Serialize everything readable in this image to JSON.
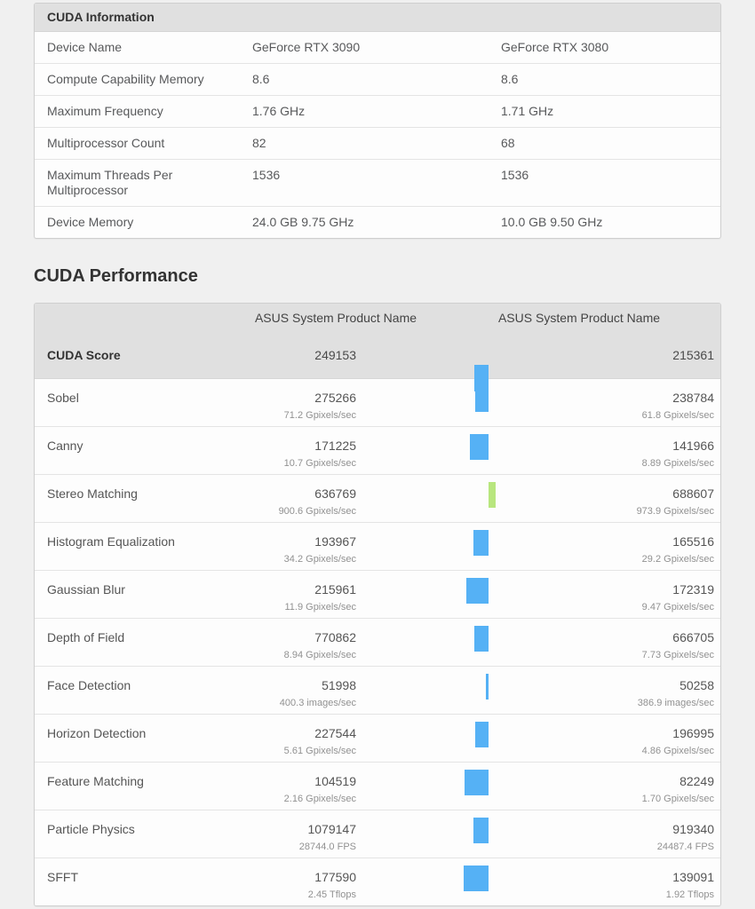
{
  "colors": {
    "bar_blue": "#55b1f5",
    "bar_green": "#b8e67e",
    "header_bg": "#e0e0e0"
  },
  "info": {
    "title": "CUDA Information",
    "rows": [
      {
        "label": "Device Name",
        "v1": "GeForce RTX 3090",
        "v2": "GeForce RTX 3080"
      },
      {
        "label": "Compute Capability Memory",
        "v1": "8.6",
        "v2": "8.6"
      },
      {
        "label": "Maximum Frequency",
        "v1": "1.76 GHz",
        "v2": "1.71 GHz"
      },
      {
        "label": "Multiprocessor Count",
        "v1": "82",
        "v2": "68"
      },
      {
        "label": "Maximum Threads Per Multiprocessor",
        "v1": "1536",
        "v2": "1536"
      },
      {
        "label": "Device Memory",
        "v1": "24.0 GB 9.75 GHz",
        "v2": "10.0 GB 9.50 GHz"
      }
    ]
  },
  "perf": {
    "heading": "CUDA Performance",
    "device1": "ASUS System Product Name",
    "device2": "ASUS System Product Name",
    "score_row": {
      "label": "CUDA Score",
      "s1": 249153,
      "s2": 215361
    },
    "rows": [
      {
        "label": "Sobel",
        "s1": 275266,
        "sub1": "71.2 Gpixels/sec",
        "s2": 238784,
        "sub2": "61.8 Gpixels/sec"
      },
      {
        "label": "Canny",
        "s1": 171225,
        "sub1": "10.7 Gpixels/sec",
        "s2": 141966,
        "sub2": "8.89 Gpixels/sec"
      },
      {
        "label": "Stereo Matching",
        "s1": 636769,
        "sub1": "900.6 Gpixels/sec",
        "s2": 688607,
        "sub2": "973.9 Gpixels/sec"
      },
      {
        "label": "Histogram Equalization",
        "s1": 193967,
        "sub1": "34.2 Gpixels/sec",
        "s2": 165516,
        "sub2": "29.2 Gpixels/sec"
      },
      {
        "label": "Gaussian Blur",
        "s1": 215961,
        "sub1": "11.9 Gpixels/sec",
        "s2": 172319,
        "sub2": "9.47 Gpixels/sec"
      },
      {
        "label": "Depth of Field",
        "s1": 770862,
        "sub1": "8.94 Gpixels/sec",
        "s2": 666705,
        "sub2": "7.73 Gpixels/sec"
      },
      {
        "label": "Face Detection",
        "s1": 51998,
        "sub1": "400.3 images/sec",
        "s2": 50258,
        "sub2": "386.9 images/sec"
      },
      {
        "label": "Horizon Detection",
        "s1": 227544,
        "sub1": "5.61 Gpixels/sec",
        "s2": 196995,
        "sub2": "4.86 Gpixels/sec"
      },
      {
        "label": "Feature Matching",
        "s1": 104519,
        "sub1": "2.16 Gpixels/sec",
        "s2": 82249,
        "sub2": "1.70 Gpixels/sec"
      },
      {
        "label": "Particle Physics",
        "s1": 1079147,
        "sub1": "28744.0 FPS",
        "s2": 919340,
        "sub2": "24487.4 FPS"
      },
      {
        "label": "SFFT",
        "s1": 177590,
        "sub1": "2.45 Tflops",
        "s2": 139091,
        "sub2": "1.92 Tflops"
      }
    ]
  }
}
